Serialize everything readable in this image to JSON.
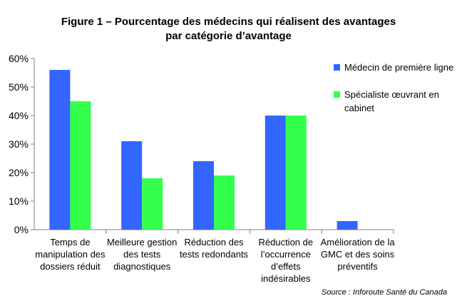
{
  "chart_data": {
    "type": "bar",
    "title_lines": [
      "Figure 1 – Pourcentage des médecins qui réalisent des avantages",
      "par catégorie d’avantage"
    ],
    "xlabel": "",
    "ylabel": "",
    "ylim": [
      0,
      60
    ],
    "yticks": [
      "0%",
      "10%",
      "20%",
      "30%",
      "40%",
      "50%",
      "60%"
    ],
    "grid": false,
    "legend_position": "right",
    "categories": [
      [
        "Temps de",
        "manipulation des",
        "dossiers réduit"
      ],
      [
        "Meilleure gestion",
        "des tests",
        "diagnostiques"
      ],
      [
        "Réduction des",
        "tests redondants"
      ],
      [
        "Réduction de",
        "l’occurrence",
        "d’effets",
        "indésirables"
      ],
      [
        "Amélioration de la",
        "GMC et des soins",
        "préventifs"
      ]
    ],
    "series": [
      {
        "name": "Médecin de première ligne",
        "color": "#3366FF",
        "values": [
          56,
          31,
          24,
          40,
          3
        ]
      },
      {
        "name_lines": [
          "Spécialiste œuvrant en",
          "cabinet"
        ],
        "color": "#33FF4D",
        "values": [
          45,
          18,
          19,
          40,
          0
        ]
      }
    ]
  },
  "source": "Source : Inforoute Santé du Canada"
}
